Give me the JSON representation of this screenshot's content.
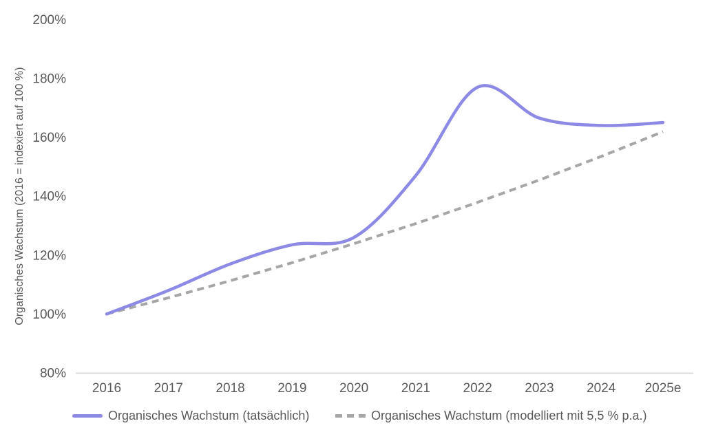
{
  "chart_data": {
    "type": "line",
    "title": "",
    "categories": [
      "2016",
      "2017",
      "2018",
      "2019",
      "2020",
      "2021",
      "2022",
      "2023",
      "2024",
      "2025e"
    ],
    "series": [
      {
        "name": "Organisches Wachstum (tatsächlich)",
        "style": "solid",
        "color": "#8d8ae6",
        "values": [
          100,
          108,
          117,
          123.5,
          126,
          147,
          177,
          166.5,
          164,
          165
        ]
      },
      {
        "name": "Organisches Wachstum (modelliert mit 5,5 % p.a.)",
        "style": "dashed",
        "color": "#a6a6a6",
        "values": [
          100,
          105.5,
          111.3,
          117.4,
          123.9,
          130.7,
          137.9,
          145.5,
          153.5,
          161.9
        ]
      }
    ],
    "xlabel": "",
    "ylabel": "Organisches Wachstum (2016 = indexiert auf 100 %)",
    "ylim": [
      80,
      200
    ],
    "yticks": [
      80,
      100,
      120,
      140,
      160,
      180,
      200
    ],
    "ytick_suffix": "%",
    "grid": false,
    "legend_position": "bottom"
  },
  "colors": {
    "axis_line": "#d6d6d6",
    "tick_text": "#595959",
    "background": "#ffffff"
  }
}
